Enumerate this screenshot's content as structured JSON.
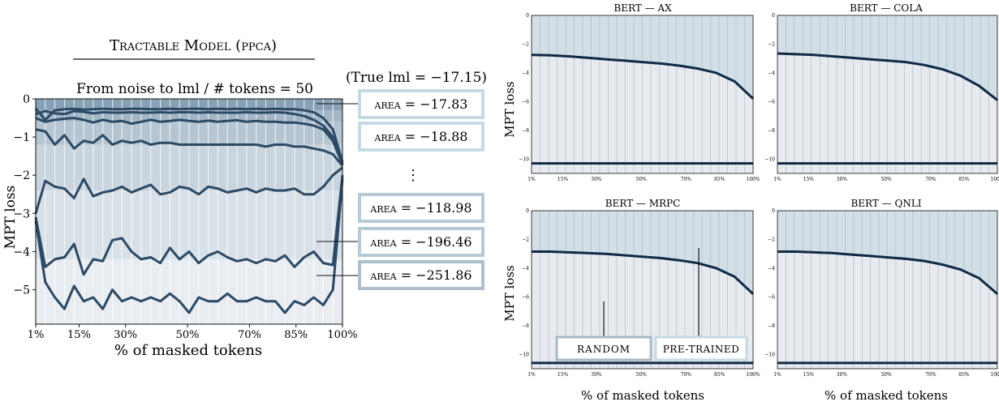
{
  "left": {
    "title": "Tractable Model (ppca)",
    "subtitle": "From noise to lml / # tokens = 50",
    "true_lml": "(True lml = −17.15)",
    "ylabel": "MPT loss",
    "xlabel": "% of masked tokens",
    "yticks": [
      "0",
      "−1",
      "−2",
      "−3",
      "−4",
      "−5"
    ],
    "xticks": [
      "1%",
      "15%",
      "30%",
      "50%",
      "70%",
      "85%",
      "100%"
    ],
    "areas": [
      "area = −17.83",
      "area = −18.88",
      "⋮",
      "area = −118.98",
      "area = −196.46",
      "area = −251.86"
    ]
  },
  "right": {
    "ylabel": "MPT loss",
    "xlabel": "% of masked tokens",
    "panels": [
      {
        "title": "BERT — AX"
      },
      {
        "title": "BERT — COLA"
      },
      {
        "title": "BERT — MRPC"
      },
      {
        "title": "BERT — QNLI"
      }
    ],
    "yticks": [
      "0",
      "−2",
      "−4",
      "−6",
      "−8",
      "−10"
    ],
    "xticks": [
      "1%",
      "15%",
      "30%",
      "50%",
      "70%",
      "85%",
      "100%"
    ],
    "legend": [
      "RANDOM",
      "PRE-TRAINED"
    ]
  },
  "chart_data": [
    {
      "type": "line",
      "title": "Tractable Model (ppca)",
      "subtitle": "From noise to lml / # tokens = 50",
      "xlabel": "% of masked tokens",
      "ylabel": "MPT loss",
      "xlim": [
        1,
        100
      ],
      "ylim": [
        -5.9,
        0
      ],
      "colors": {
        "line": "#2b4a66",
        "band_dark": "#8aa2b8",
        "band_light": "#e8ecf1",
        "box": "#b9cfdc"
      },
      "series": [
        {
          "area": -17.83,
          "values": [
            -0.25,
            -0.55,
            -0.3,
            -0.27,
            -0.26,
            -0.28,
            -0.27,
            -0.26,
            -0.27,
            -0.27,
            -0.26,
            -0.26,
            -0.27,
            -0.27,
            -0.26,
            -0.27,
            -0.26,
            -0.26,
            -0.27,
            -0.26,
            -0.27,
            -0.26,
            -0.27,
            -0.26,
            -0.27,
            -0.26,
            -0.27,
            -0.27,
            -0.3,
            -0.35,
            -0.5,
            -0.8,
            -1.65
          ]
        },
        {
          "area": -18.88,
          "values": [
            -0.4,
            -0.32,
            -0.38,
            -0.4,
            -0.32,
            -0.34,
            -0.38,
            -0.35,
            -0.36,
            -0.36,
            -0.35,
            -0.36,
            -0.36,
            -0.35,
            -0.36,
            -0.35,
            -0.35,
            -0.36,
            -0.35,
            -0.36,
            -0.36,
            -0.36,
            -0.35,
            -0.36,
            -0.36,
            -0.35,
            -0.36,
            -0.4,
            -0.45,
            -0.55,
            -0.7,
            -1.0,
            -1.7
          ]
        },
        {
          "values": [
            -0.5,
            -0.6,
            -0.55,
            -0.52,
            -0.5,
            -0.55,
            -0.62,
            -0.55,
            -0.6,
            -0.58,
            -0.65,
            -0.6,
            -0.55,
            -0.6,
            -0.58,
            -0.55,
            -0.58,
            -0.6,
            -0.57,
            -0.6,
            -0.58,
            -0.56,
            -0.6,
            -0.58,
            -0.6,
            -0.6,
            -0.62,
            -0.62,
            -0.65,
            -0.7,
            -0.8,
            -1.1,
            -1.72
          ]
        },
        {
          "values": [
            -0.8,
            -0.85,
            -1.2,
            -0.95,
            -1.3,
            -1.1,
            -1.15,
            -0.95,
            -1.2,
            -1.1,
            -1.15,
            -1.1,
            -1.2,
            -1.15,
            -1.15,
            -1.2,
            -1.2,
            -1.2,
            -1.2,
            -1.2,
            -1.2,
            -1.2,
            -1.2,
            -1.2,
            -1.25,
            -1.2,
            -1.2,
            -1.25,
            -1.25,
            -1.3,
            -1.35,
            -1.45,
            -1.75
          ]
        },
        {
          "area": -118.98,
          "values": [
            -3.0,
            -2.15,
            -2.3,
            -2.35,
            -2.6,
            -2.1,
            -2.55,
            -2.45,
            -2.4,
            -2.3,
            -2.45,
            -2.35,
            -2.25,
            -2.5,
            -2.45,
            -2.3,
            -2.35,
            -2.5,
            -2.3,
            -2.35,
            -2.45,
            -2.4,
            -2.35,
            -2.45,
            -2.35,
            -2.4,
            -2.4,
            -2.35,
            -2.5,
            -2.5,
            -2.3,
            -2.0,
            -1.8
          ]
        },
        {
          "area": -196.46,
          "values": [
            -3.1,
            -4.4,
            -4.2,
            -4.15,
            -3.8,
            -4.6,
            -4.2,
            -4.25,
            -3.7,
            -3.65,
            -4.0,
            -4.2,
            -4.15,
            -4.3,
            -3.9,
            -4.2,
            -4.0,
            -4.3,
            -4.1,
            -4.0,
            -4.15,
            -4.25,
            -4.2,
            -4.3,
            -4.2,
            -4.25,
            -4.1,
            -4.4,
            -4.15,
            -4.0,
            -4.3,
            -4.35,
            -2.0
          ]
        },
        {
          "area": -251.86,
          "values": [
            -3.2,
            -4.8,
            -5.2,
            -5.5,
            -4.9,
            -5.3,
            -5.2,
            -5.5,
            -5.0,
            -5.3,
            -5.2,
            -5.3,
            -5.2,
            -5.3,
            -5.1,
            -5.3,
            -5.6,
            -5.2,
            -5.3,
            -5.3,
            -5.1,
            -5.3,
            -5.3,
            -5.2,
            -5.3,
            -5.3,
            -5.6,
            -5.3,
            -5.4,
            -5.2,
            -5.4,
            -5.0,
            -2.1
          ]
        }
      ]
    },
    {
      "type": "line",
      "title": "BERT — AX",
      "xlim": [
        1,
        100
      ],
      "ylim": [
        -11,
        0
      ],
      "series": [
        {
          "name": "PRE-TRAINED",
          "values": [
            -2.75,
            -2.78,
            -2.85,
            -2.95,
            -3.05,
            -3.15,
            -3.25,
            -3.35,
            -3.5,
            -3.7,
            -4.0,
            -4.6,
            -5.8
          ]
        },
        {
          "name": "RANDOM",
          "values": [
            -10.3,
            -10.3,
            -10.3,
            -10.3,
            -10.3,
            -10.3,
            -10.3,
            -10.3,
            -10.3,
            -10.3,
            -10.3,
            -10.3,
            -10.3
          ]
        }
      ]
    },
    {
      "type": "line",
      "title": "BERT — COLA",
      "xlim": [
        1,
        100
      ],
      "ylim": [
        -11,
        0
      ],
      "series": [
        {
          "name": "PRE-TRAINED",
          "values": [
            -2.65,
            -2.7,
            -2.75,
            -2.85,
            -2.95,
            -3.05,
            -3.15,
            -3.25,
            -3.45,
            -3.75,
            -4.2,
            -4.9,
            -5.9
          ]
        },
        {
          "name": "RANDOM",
          "values": [
            -10.3,
            -10.3,
            -10.3,
            -10.3,
            -10.3,
            -10.3,
            -10.3,
            -10.3,
            -10.3,
            -10.3,
            -10.3,
            -10.3,
            -10.3
          ]
        }
      ]
    },
    {
      "type": "line",
      "title": "BERT — MRPC",
      "xlim": [
        1,
        100
      ],
      "ylim": [
        -11,
        0
      ],
      "series": [
        {
          "name": "PRE-TRAINED",
          "values": [
            -2.85,
            -2.85,
            -2.9,
            -2.95,
            -3.0,
            -3.1,
            -3.2,
            -3.3,
            -3.45,
            -3.65,
            -4.0,
            -4.6,
            -5.8
          ]
        },
        {
          "name": "RANDOM",
          "values": [
            -10.6,
            -10.6,
            -10.6,
            -10.6,
            -10.6,
            -10.6,
            -10.6,
            -10.6,
            -10.6,
            -10.6,
            -10.6,
            -10.6,
            -10.6
          ]
        }
      ]
    },
    {
      "type": "line",
      "title": "BERT — QNLI",
      "xlim": [
        1,
        100
      ],
      "ylim": [
        -11,
        0
      ],
      "series": [
        {
          "name": "PRE-TRAINED",
          "values": [
            -2.85,
            -2.85,
            -2.9,
            -2.95,
            -3.05,
            -3.15,
            -3.25,
            -3.35,
            -3.5,
            -3.75,
            -4.1,
            -4.7,
            -5.8
          ]
        },
        {
          "name": "RANDOM",
          "values": [
            -10.6,
            -10.6,
            -10.6,
            -10.6,
            -10.6,
            -10.6,
            -10.6,
            -10.6,
            -10.6,
            -10.6,
            -10.6,
            -10.6,
            -10.6
          ]
        }
      ]
    }
  ]
}
